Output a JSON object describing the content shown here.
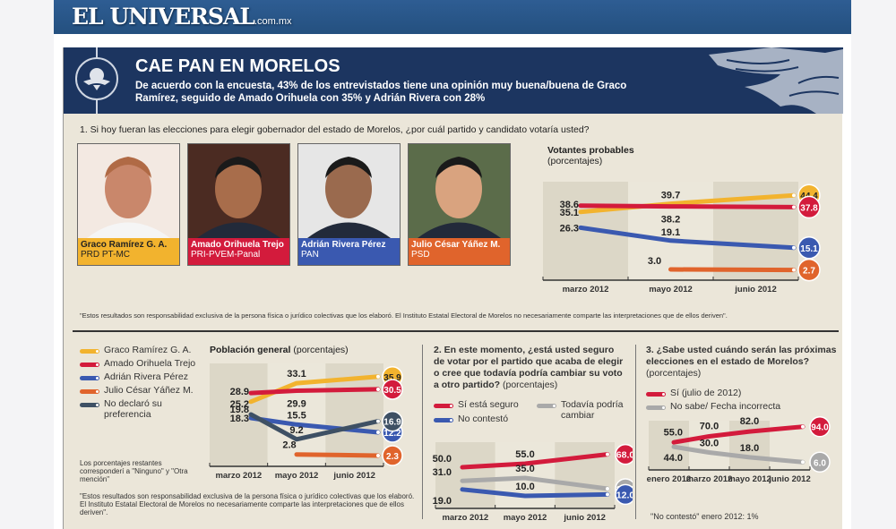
{
  "masthead": {
    "brand": "EL UNIVERSAL",
    "domain": ".com.mx"
  },
  "banner": {
    "title": "CAE PAN EN MORELOS",
    "subtitle": "De acuerdo con la encuesta,  43% de los entrevistados tiene una opinión muy buena/buena  de  Graco Ramírez, seguido de Amado Orihuela con 35% y Adrián Rivera con 28%",
    "emblem_icon": "eagle-emblem-icon"
  },
  "colors": {
    "graco": "#f2b32e",
    "amado": "#d31b3c",
    "adrian": "#3a59b0",
    "julio": "#e0642c",
    "nodeclaro": "#3e5064",
    "gray": "#a9a9a9",
    "navy": "#1c3560",
    "panel_bg": "#ebe6d9"
  },
  "question1": "1. Si hoy fueran las elecciones para elegir gobernador del estado de Morelos, ¿por cuál partido y candidato votaría usted?",
  "candidates": [
    {
      "name": "Graco Ramírez G. A.",
      "party": "PRD PT-MC",
      "color": "#f2b32e",
      "text_color": "#222222"
    },
    {
      "name": "Amado Orihuela Trejo",
      "party": "PRI-PVEM-Panal",
      "color": "#d31b3c",
      "text_color": "#ffffff"
    },
    {
      "name": "Adrián Rivera Pérez",
      "party": "PAN",
      "color": "#3a59b0",
      "text_color": "#ffffff"
    },
    {
      "name": "Julio César Yáñez M.",
      "party": "PSD",
      "color": "#e0642c",
      "text_color": "#ffffff"
    }
  ],
  "disclaimer": "\"Estos resultados son responsabilidad exclusiva de la persona física o jurídico colectivas que los elaboró. El Instituto Estatal Electoral de Morelos no necesariamente comparte las interpretaciones que de ellos deriven\".",
  "legend_main": [
    {
      "label": "Graco Ramírez G. A.",
      "color": "#f2b32e"
    },
    {
      "label": "Amado Orihuela Trejo",
      "color": "#d31b3c"
    },
    {
      "label": "Adrián Rivera Pérez",
      "color": "#3a59b0"
    },
    {
      "label": "Julio César Yáñez M.",
      "color": "#e0642c"
    },
    {
      "label": "No declaró su preferencia",
      "color": "#3e5064"
    }
  ],
  "remaining_note": "Los porcentajes restantes corresponderí a \"Ninguno\" y \"Otra mención\"",
  "disclaimer2": "\"Estos resultados son responsabilidad exclusiva de la persona física o jurídico colectivas que los elaboró. El Instituto Estatal Electoral de Morelos no necesariamente comparte las interpretaciones que de ellos deriven\".",
  "question2": {
    "bold": "2. En este momento, ¿está usted seguro de votar por el partido que  acaba de elegir o cree que todavía podría cambiar su voto a otro partido?",
    "normal": " (porcentajes)"
  },
  "legend_q2": [
    {
      "label": "Sí está seguro",
      "color": "#d31b3c"
    },
    {
      "label": "No contestó",
      "color": "#3a59b0"
    },
    {
      "label": "Todavía podría cambiar",
      "color": "#a9a9a9"
    }
  ],
  "question3": {
    "bold": "3. ¿Sabe usted cuándo serán las próximas elecciones en el estado de Morelos?",
    "normal": "(porcentajes)"
  },
  "legend_q3": [
    {
      "label": "Sí (julio de 2012)",
      "color": "#d31b3c"
    },
    {
      "label": "No sabe/ Fecha incorrecta",
      "color": "#a9a9a9"
    }
  ],
  "q3_note": "\"No contestó\" enero 2012: 1%",
  "chart_data": [
    {
      "type": "line",
      "title": "Votantes probables",
      "subtitle": "(porcentajes)",
      "categories": [
        "marzo 2012",
        "mayo 2012",
        "junio 2012"
      ],
      "ylim": [
        0,
        50
      ],
      "series": [
        {
          "name": "Graco Ramírez G. A.",
          "color": "#f2b32e",
          "values": [
            35.1,
            39.7,
            44.4
          ],
          "label_text": "#222"
        },
        {
          "name": "Amado Orihuela Trejo",
          "color": "#d31b3c",
          "values": [
            38.6,
            38.2,
            37.8
          ],
          "label_text": "#fff"
        },
        {
          "name": "Adrián Rivera Pérez",
          "color": "#3a59b0",
          "values": [
            26.3,
            19.1,
            15.1
          ],
          "label_text": "#fff"
        },
        {
          "name": "Julio César Yáñez M.",
          "color": "#e0642c",
          "values": [
            null,
            3.0,
            2.7
          ],
          "label_text": "#fff"
        }
      ]
    },
    {
      "type": "line",
      "title": "Población general",
      "subtitle": "(porcentajes)",
      "categories": [
        "marzo 2012",
        "mayo 2012",
        "junio 2012"
      ],
      "ylim": [
        0,
        40
      ],
      "series": [
        {
          "name": "Graco Ramírez G. A.",
          "color": "#f2b32e",
          "values": [
            25.2,
            33.1,
            35.9
          ],
          "label_text": "#222"
        },
        {
          "name": "Amado Orihuela Trejo",
          "color": "#d31b3c",
          "values": [
            28.9,
            29.9,
            30.5
          ],
          "label_text": "#fff"
        },
        {
          "name": "Adrián Rivera Pérez",
          "color": "#3a59b0",
          "values": [
            18.3,
            15.5,
            12.2
          ],
          "label_text": "#fff"
        },
        {
          "name": "Julio César Yáñez M.",
          "color": "#e0642c",
          "values": [
            null,
            2.8,
            2.3
          ],
          "label_text": "#fff"
        },
        {
          "name": "No declaró su preferencia",
          "color": "#3e5064",
          "values": [
            19.8,
            9.2,
            16.9
          ],
          "label_text": "#fff"
        }
      ]
    },
    {
      "type": "line",
      "title": "2. En este momento, ¿está usted seguro de votar por el partido que acaba de elegir o cree que todavía podría cambiar su voto a otro partido? (porcentajes)",
      "categories": [
        "marzo 2012",
        "mayo 2012",
        "junio 2012"
      ],
      "ylim": [
        0,
        80
      ],
      "series": [
        {
          "name": "Sí está seguro",
          "color": "#d31b3c",
          "values": [
            50,
            55,
            68
          ],
          "label_text": "#fff"
        },
        {
          "name": "Todavía podría cambiar",
          "color": "#a9a9a9",
          "values": [
            31,
            35,
            20
          ],
          "label_text": "#fff"
        },
        {
          "name": "No contestó",
          "color": "#3a59b0",
          "values": [
            19,
            10,
            12
          ],
          "label_text": "#fff"
        }
      ]
    },
    {
      "type": "line",
      "title": "3. ¿Sabe usted cuándo serán las próximas elecciones en el estado de Morelos? (porcentajes)",
      "categories": [
        "enero 2012",
        "marzo 2012",
        "mayo 2012",
        "junio 2012"
      ],
      "ylim": [
        0,
        100
      ],
      "series": [
        {
          "name": "Sí (julio de 2012)",
          "color": "#d31b3c",
          "values": [
            55,
            70,
            82,
            94
          ],
          "label_text": "#fff"
        },
        {
          "name": "No sabe/ Fecha incorrecta",
          "color": "#a9a9a9",
          "values": [
            44,
            30,
            18,
            6
          ],
          "label_text": "#fff"
        }
      ]
    }
  ]
}
